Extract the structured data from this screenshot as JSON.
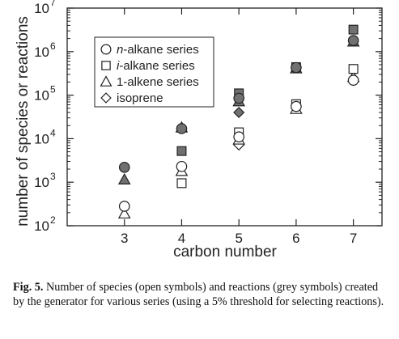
{
  "chart_data": {
    "type": "scatter",
    "xlabel": "carbon number",
    "ylabel": "number of species or reactions",
    "x_ticks": [
      "3",
      "4",
      "5",
      "6",
      "7"
    ],
    "y_ticks": [
      {
        "base": "10",
        "exp": "2",
        "value": 100
      },
      {
        "base": "10",
        "exp": "3",
        "value": 1000
      },
      {
        "base": "10",
        "exp": "4",
        "value": 10000
      },
      {
        "base": "10",
        "exp": "5",
        "value": 100000
      },
      {
        "base": "10",
        "exp": "6",
        "value": 1000000
      },
      {
        "base": "10",
        "exp": "7",
        "value": 10000000
      }
    ],
    "xlim": [
      2.0,
      7.5
    ],
    "ylim": [
      100,
      10000000
    ],
    "yscale": "log",
    "grid": false,
    "legend_position": "top-left",
    "legend": [
      {
        "prefix": "n",
        "text": "-alkane series",
        "marker": "circle"
      },
      {
        "prefix": "i",
        "text": "-alkane series",
        "marker": "square"
      },
      {
        "prefix": "",
        "text": "1-alkene series",
        "marker": "triangle"
      },
      {
        "prefix": "",
        "text": "isoprene",
        "marker": "diamond"
      }
    ],
    "series": [
      {
        "marker": "circle",
        "fill": "open",
        "x": [
          3,
          4,
          5,
          6,
          7
        ],
        "y": [
          280,
          2300,
          11000,
          55000,
          220000
        ]
      },
      {
        "marker": "circle",
        "fill": "grey",
        "x": [
          3,
          4,
          5,
          6,
          7
        ],
        "y": [
          2200,
          17000,
          85000,
          430000,
          1800000
        ]
      },
      {
        "marker": "square",
        "fill": "open",
        "x": [
          4,
          5,
          6,
          7
        ],
        "y": [
          950,
          14000,
          62000,
          400000
        ]
      },
      {
        "marker": "square",
        "fill": "grey",
        "x": [
          4,
          5,
          6,
          7
        ],
        "y": [
          5200,
          110000,
          440000,
          3200000
        ]
      },
      {
        "marker": "triangle",
        "fill": "open",
        "x": [
          3,
          4,
          5,
          6,
          7
        ],
        "y": [
          190,
          1800,
          9500,
          48000,
          260000
        ]
      },
      {
        "marker": "triangle",
        "fill": "grey",
        "x": [
          3,
          4,
          5,
          6,
          7
        ],
        "y": [
          1150,
          18000,
          72000,
          410000,
          1700000
        ]
      },
      {
        "marker": "diamond",
        "fill": "open",
        "x": [
          5
        ],
        "y": [
          7200
        ]
      },
      {
        "marker": "diamond",
        "fill": "grey",
        "x": [
          5
        ],
        "y": [
          40000
        ]
      }
    ],
    "colors": {
      "grey_fill": "#707070",
      "open_fill": "#ffffff",
      "stroke": "#222222"
    }
  },
  "caption": {
    "label": "Fig. 5.",
    "text": " Number of species (open symbols) and reactions (grey symbols) created by the generator for various series (using a 5% threshold for selecting reactions)."
  }
}
